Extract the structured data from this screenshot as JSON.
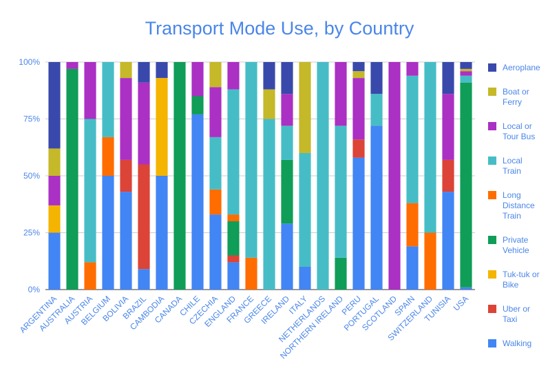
{
  "chart_data": {
    "type": "bar",
    "stacked": true,
    "normalized": true,
    "title": "Transport Mode Use, by Country",
    "xlabel": "",
    "ylabel": "",
    "ylim": [
      0,
      100
    ],
    "y_ticks": [
      "0%",
      "25%",
      "50%",
      "75%",
      "100%"
    ],
    "legend_position": "right",
    "categories": [
      "ARGENTINA",
      "AUSTRALIA",
      "AUSTRIA",
      "BELGIUM",
      "BOLIVIA",
      "BRAZIL",
      "CAMBODIA",
      "CANADA",
      "CHILE",
      "CZECHIA",
      "ENGLAND",
      "FRANCE",
      "GREECE",
      "IRELAND",
      "ITALY",
      "NETHERLANDS",
      "NORTHERN IRELAND",
      "PERU",
      "PORTUGAL",
      "SCOTLAND",
      "SPAIN",
      "SWITZERLAND",
      "TUNISIA",
      "USA"
    ],
    "series": [
      {
        "name": "Walking",
        "color": "#4285f4",
        "values": [
          25,
          0,
          0,
          50,
          43,
          9,
          50,
          0,
          77,
          33,
          12,
          0,
          0,
          29,
          10,
          0,
          0,
          58,
          72,
          0,
          19,
          0,
          43,
          1
        ]
      },
      {
        "name": "Uber or Taxi",
        "color": "#db4437",
        "values": [
          0,
          0,
          0,
          0,
          14,
          46,
          0,
          0,
          0,
          0,
          3,
          0,
          0,
          0,
          0,
          0,
          0,
          8,
          0,
          0,
          0,
          0,
          14,
          0
        ]
      },
      {
        "name": "Tuk-tuk or Bike",
        "color": "#f4b400",
        "values": [
          12,
          0,
          0,
          0,
          0,
          0,
          43,
          0,
          0,
          0,
          0,
          0,
          0,
          0,
          0,
          0,
          0,
          0,
          0,
          0,
          0,
          0,
          0,
          0
        ]
      },
      {
        "name": "Private Vehicle",
        "color": "#0f9d58",
        "values": [
          0,
          97,
          0,
          0,
          0,
          0,
          0,
          100,
          8,
          0,
          15,
          0,
          0,
          28,
          0,
          0,
          14,
          0,
          0,
          0,
          0,
          0,
          0,
          90
        ]
      },
      {
        "name": "Long Distance Train",
        "color": "#ff6d00",
        "values": [
          0,
          0,
          12,
          17,
          0,
          0,
          0,
          0,
          0,
          11,
          3,
          14,
          0,
          0,
          0,
          0,
          0,
          0,
          0,
          0,
          19,
          25,
          0,
          0
        ]
      },
      {
        "name": "Local Train",
        "color": "#46bdc6",
        "values": [
          0,
          0,
          63,
          33,
          0,
          0,
          0,
          0,
          0,
          23,
          55,
          86,
          75,
          15,
          50,
          100,
          58,
          0,
          14,
          0,
          56,
          75,
          0,
          3
        ]
      },
      {
        "name": "Local or Tour Bus",
        "color": "#ab30c4",
        "values": [
          13,
          3,
          25,
          0,
          36,
          36,
          0,
          0,
          15,
          22,
          12,
          0,
          0,
          14,
          0,
          0,
          28,
          27,
          0,
          100,
          6,
          0,
          29,
          2
        ]
      },
      {
        "name": "Boat or Ferry",
        "color": "#c5b829",
        "values": [
          12,
          0,
          0,
          0,
          7,
          0,
          0,
          0,
          0,
          11,
          0,
          0,
          13,
          0,
          40,
          0,
          0,
          3,
          0,
          0,
          0,
          0,
          0,
          1
        ]
      },
      {
        "name": "Aeroplane",
        "color": "#3949ab",
        "values": [
          38,
          0,
          0,
          0,
          0,
          9,
          7,
          0,
          0,
          0,
          0,
          0,
          12,
          14,
          0,
          0,
          0,
          4,
          14,
          0,
          0,
          0,
          14,
          3
        ]
      }
    ]
  }
}
